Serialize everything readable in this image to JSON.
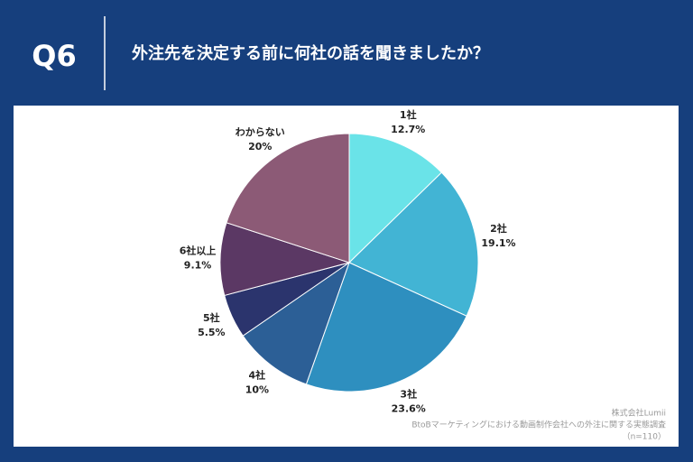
{
  "header": {
    "badge": "Q6",
    "question": "外注先を決定する前に何社の話を聞きましたか？"
  },
  "chart_data": {
    "type": "pie",
    "categories": [
      "1社",
      "2社",
      "3社",
      "4社",
      "5社",
      "6社以上",
      "わからない"
    ],
    "values": [
      12.7,
      19.1,
      23.6,
      10,
      5.5,
      9.1,
      20
    ],
    "value_labels": [
      "12.7%",
      "19.1%",
      "23.6%",
      "10%",
      "5.5%",
      "9.1%",
      "20%"
    ],
    "colors": [
      "#6ae3e8",
      "#42b4d4",
      "#2e8fbf",
      "#2c5f96",
      "#2b346d",
      "#5b3864",
      "#8c5a76"
    ]
  },
  "footer": {
    "company": "株式会社Lumii",
    "survey": "BtoBマーケティングにおける動画制作会社への外注に関する実態調査",
    "sample": "（n=110）"
  }
}
